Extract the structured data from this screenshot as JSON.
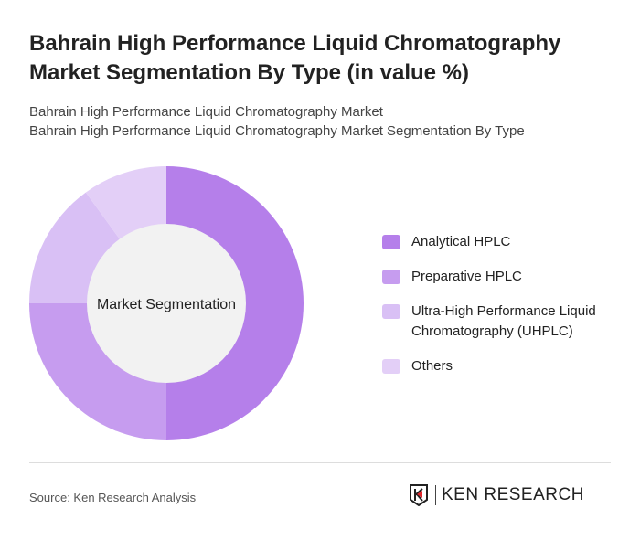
{
  "title": "Bahrain High Performance Liquid Chromatography Market Segmentation By Type (in value %)",
  "subtitle_1": "Bahrain High Performance Liquid Chromatography Market",
  "subtitle_2": "Bahrain High Performance Liquid Chromatography Market Segmentation By Type",
  "source": "Source: Ken Research Analysis",
  "logo_text": "KEN RESEARCH",
  "chart_data": {
    "type": "pie",
    "donut": true,
    "center_label": "Market Segmentation",
    "categories": [
      "Analytical HPLC",
      "Preparative HPLC",
      "Ultra-High Performance Liquid Chromatography (UHPLC)",
      "Others"
    ],
    "values": [
      50,
      25,
      15,
      10
    ],
    "colors": [
      "#b57fea",
      "#c69cef",
      "#d9c0f5",
      "#e3cff7"
    ],
    "legend_position": "right"
  }
}
